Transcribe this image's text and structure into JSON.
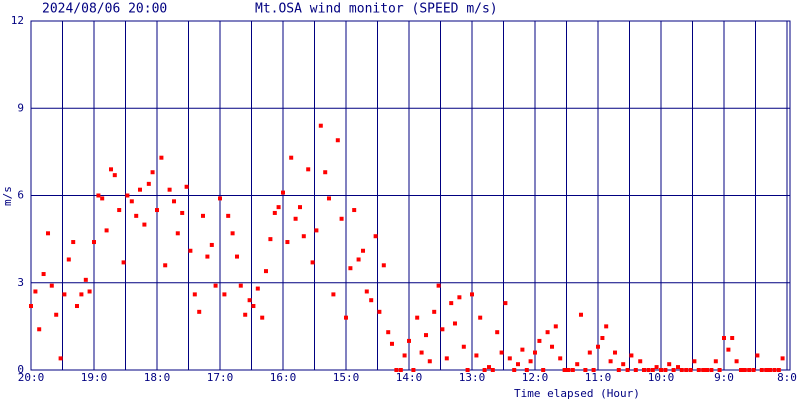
{
  "chart_data": {
    "type": "scatter",
    "date": "2024/08/06 20:00",
    "title": "Mt.OSA wind monitor (SPEED m/s)",
    "x_label": "Time elapsed (Hour)",
    "y_label": "m/s",
    "color": "#ff0000",
    "grid_color": "#000080",
    "grid": true,
    "xlim": [
      0,
      12
    ],
    "ylim": [
      0,
      12
    ],
    "yticks": [
      0,
      3,
      6,
      9,
      12
    ],
    "xticks": [
      {
        "value": 0,
        "label": "20:0"
      },
      {
        "value": 1,
        "label": "19:0"
      },
      {
        "value": 2,
        "label": "18:0"
      },
      {
        "value": 3,
        "label": "17:0"
      },
      {
        "value": 4,
        "label": "16:0"
      },
      {
        "value": 5,
        "label": "15:0"
      },
      {
        "value": 6,
        "label": "14:0"
      },
      {
        "value": 7,
        "label": "13:0"
      },
      {
        "value": 8,
        "label": "12:0"
      },
      {
        "value": 9,
        "label": "11:0"
      },
      {
        "value": 10,
        "label": "10:0"
      },
      {
        "value": 11,
        "label": "9:0"
      },
      {
        "value": 12,
        "label": "8:0"
      }
    ],
    "x_minor_grid": [
      0.5,
      1.5,
      2.5,
      3.5,
      4.5,
      5.5,
      6.5,
      7.5,
      8.5,
      9.5,
      10.5,
      11.5
    ],
    "x": [
      0.0,
      0.07,
      0.13,
      0.2,
      0.27,
      0.33,
      0.4,
      0.47,
      0.53,
      0.6,
      0.67,
      0.73,
      0.8,
      0.87,
      0.93,
      1.0,
      1.07,
      1.13,
      1.2,
      1.27,
      1.33,
      1.4,
      1.47,
      1.53,
      1.6,
      1.67,
      1.73,
      1.8,
      1.87,
      1.93,
      2.0,
      2.07,
      2.13,
      2.2,
      2.27,
      2.33,
      2.4,
      2.47,
      2.53,
      2.6,
      2.67,
      2.73,
      2.8,
      2.87,
      2.93,
      3.0,
      3.07,
      3.13,
      3.2,
      3.27,
      3.33,
      3.4,
      3.47,
      3.53,
      3.6,
      3.67,
      3.73,
      3.8,
      3.87,
      3.93,
      4.0,
      4.07,
      4.13,
      4.2,
      4.27,
      4.33,
      4.4,
      4.47,
      4.53,
      4.6,
      4.67,
      4.73,
      4.8,
      4.87,
      4.93,
      5.0,
      5.07,
      5.13,
      5.2,
      5.27,
      5.33,
      5.4,
      5.47,
      5.53,
      5.6,
      5.67,
      5.73,
      5.8,
      5.87,
      5.93,
      6.0,
      6.07,
      6.13,
      6.2,
      6.27,
      6.33,
      6.4,
      6.47,
      6.53,
      6.6,
      6.67,
      6.73,
      6.8,
      6.87,
      6.93,
      7.0,
      7.07,
      7.13,
      7.2,
      7.27,
      7.33,
      7.4,
      7.47,
      7.53,
      7.6,
      7.67,
      7.73,
      7.8,
      7.87,
      7.93,
      8.0,
      8.07,
      8.13,
      8.2,
      8.27,
      8.33,
      8.4,
      8.47,
      8.53,
      8.6,
      8.67,
      8.73,
      8.8,
      8.87,
      8.93,
      9.0,
      9.07,
      9.13,
      9.2,
      9.27,
      9.33,
      9.4,
      9.47,
      9.53,
      9.6,
      9.67,
      9.73,
      9.8,
      9.87,
      9.93,
      10.0,
      10.07,
      10.13,
      10.2,
      10.27,
      10.33,
      10.4,
      10.47,
      10.53,
      10.6,
      10.67,
      10.73,
      10.8,
      10.87,
      10.93,
      11.0,
      11.07,
      11.13,
      11.2,
      11.27,
      11.33,
      11.4,
      11.47,
      11.53,
      11.6,
      11.67,
      11.73,
      11.8,
      11.87,
      11.93
    ],
    "values": [
      2.2,
      2.7,
      1.4,
      3.3,
      4.7,
      2.9,
      1.9,
      0.4,
      2.6,
      3.8,
      4.4,
      2.2,
      2.6,
      3.1,
      2.7,
      4.4,
      6.0,
      5.9,
      4.8,
      6.9,
      6.7,
      5.5,
      3.7,
      6.0,
      5.8,
      5.3,
      6.2,
      5.0,
      6.4,
      6.8,
      5.5,
      7.3,
      3.6,
      6.2,
      5.8,
      4.7,
      5.4,
      6.3,
      4.1,
      2.6,
      2.0,
      5.3,
      3.9,
      4.3,
      2.9,
      5.9,
      2.6,
      5.3,
      4.7,
      3.9,
      2.9,
      1.9,
      2.4,
      2.2,
      2.8,
      1.8,
      3.4,
      4.5,
      5.4,
      5.6,
      6.1,
      4.4,
      7.3,
      5.2,
      5.6,
      4.6,
      6.9,
      3.7,
      4.8,
      8.4,
      6.8,
      5.9,
      2.6,
      7.9,
      5.2,
      1.8,
      3.5,
      5.5,
      3.8,
      4.1,
      2.7,
      2.4,
      4.6,
      2.0,
      3.6,
      1.3,
      0.9,
      0.0,
      0.0,
      0.5,
      1.0,
      0.0,
      1.8,
      0.6,
      1.2,
      0.3,
      2.0,
      2.9,
      1.4,
      0.4,
      2.3,
      1.6,
      2.5,
      0.8,
      0.0,
      2.6,
      0.5,
      1.8,
      0.0,
      0.1,
      0.0,
      1.3,
      0.6,
      2.3,
      0.4,
      0.0,
      0.2,
      0.7,
      0.0,
      0.3,
      0.6,
      1.0,
      0.0,
      1.3,
      0.8,
      1.5,
      0.4,
      0.0,
      0.0,
      0.0,
      0.2,
      1.9,
      0.0,
      0.6,
      0.0,
      0.8,
      1.1,
      1.5,
      0.3,
      0.6,
      0.0,
      0.2,
      0.0,
      0.5,
      0.0,
      0.3,
      0.0,
      0.0,
      0.0,
      0.1,
      0.0,
      0.0,
      0.2,
      0.0,
      0.1,
      0.0,
      0.0,
      0.0,
      0.3,
      0.0,
      0.0,
      0.0,
      0.0,
      0.3,
      0.0,
      1.1,
      0.7,
      1.1,
      0.3,
      0.0,
      0.0,
      0.0,
      0.0,
      0.5,
      0.0,
      0.0,
      0.0,
      0.0,
      0.0,
      0.4
    ]
  }
}
